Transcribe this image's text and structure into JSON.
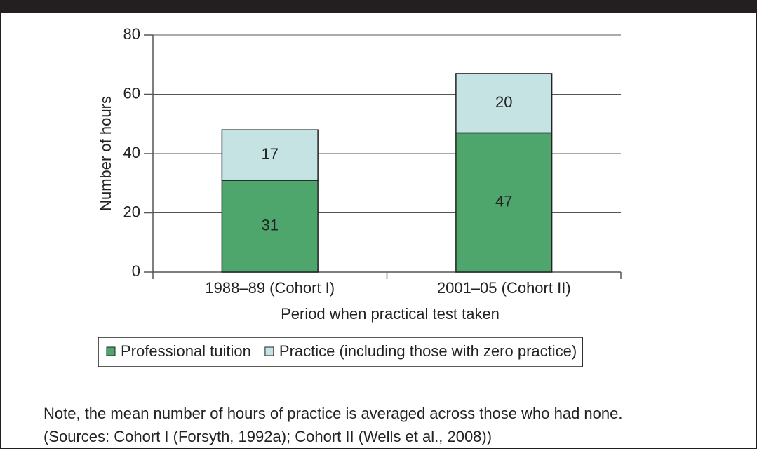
{
  "chart_data": {
    "type": "stacked_bar",
    "y_label": "Number of hours",
    "x_label": "Period when practical test taken",
    "categories": [
      "1988–89 (Cohort I)",
      "2001–05 (Cohort II)"
    ],
    "series": [
      {
        "name": "Professional tuition",
        "color": "#4ea66d",
        "values": [
          31,
          47
        ]
      },
      {
        "name": "Practice (including those with zero practice)",
        "color": "#c4e3e2",
        "values": [
          17,
          20
        ]
      }
    ],
    "ylim": [
      0,
      80
    ],
    "yticks": [
      0,
      20,
      40,
      60,
      80
    ],
    "grid": true,
    "legend": "bottom",
    "notes": [
      "Note, the mean number of hours of practice is averaged across those who had none.",
      "(Sources: Cohort I (Forsyth, 1992a); Cohort II (Wells et al., 2008))"
    ]
  }
}
